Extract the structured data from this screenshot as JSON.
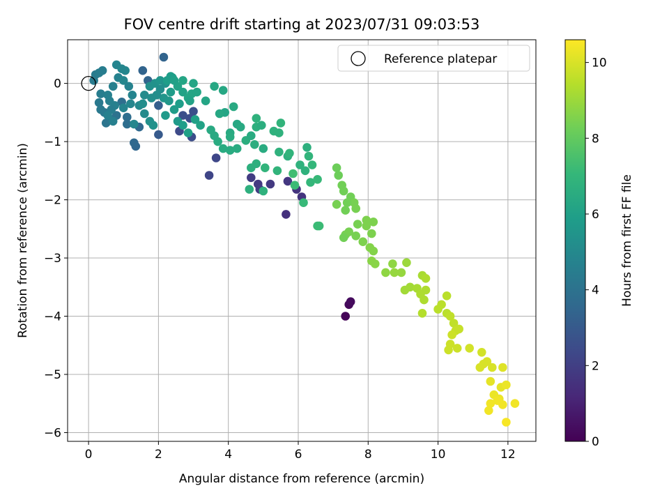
{
  "chart_data": {
    "type": "scatter",
    "title": "FOV centre drift starting at 2023/07/31 09:03:53",
    "xlabel": "Angular distance from reference (arcmin)",
    "ylabel": "Rotation from reference (arcmin)",
    "xlim": [
      -0.6,
      12.8
    ],
    "ylim": [
      -6.15,
      0.75
    ],
    "xticks": [
      0,
      2,
      4,
      6,
      8,
      10,
      12
    ],
    "yticks": [
      0,
      -1,
      -2,
      -3,
      -4,
      -5,
      -6
    ],
    "grid": true,
    "legend": {
      "position": "top-right",
      "entries": [
        "Reference platepar"
      ]
    },
    "reference_point": {
      "x": 0,
      "y": 0,
      "label": "Reference platepar"
    },
    "colorbar": {
      "label": "Hours from first FF file",
      "min": 0,
      "max": 10.6,
      "ticks": [
        0,
        2,
        4,
        6,
        8,
        10
      ],
      "colormap": "viridis",
      "stops": [
        "#440154",
        "#482878",
        "#3e4989",
        "#31688e",
        "#26828e",
        "#1f9e89",
        "#35b779",
        "#6ece58",
        "#b5de2b",
        "#fde725"
      ]
    },
    "points": [
      [
        7.35,
        -4.0,
        0.1
      ],
      [
        7.45,
        -3.8,
        0.2
      ],
      [
        7.5,
        -3.75,
        0.3
      ],
      [
        5.65,
        -2.25,
        1.5
      ],
      [
        6.1,
        -1.95,
        1.6
      ],
      [
        5.95,
        -1.82,
        1.6
      ],
      [
        5.7,
        -1.68,
        1.7
      ],
      [
        5.2,
        -1.73,
        1.8
      ],
      [
        4.85,
        -1.73,
        1.8
      ],
      [
        4.9,
        -1.82,
        1.9
      ],
      [
        4.65,
        -1.62,
        1.9
      ],
      [
        3.45,
        -1.58,
        2.2
      ],
      [
        3.65,
        -1.28,
        2.3
      ],
      [
        2.95,
        -0.92,
        2.5
      ],
      [
        2.6,
        -0.82,
        2.4
      ],
      [
        2.9,
        -0.6,
        2.5
      ],
      [
        3.0,
        -0.48,
        2.6
      ],
      [
        2.7,
        -0.55,
        2.6
      ],
      [
        2.0,
        -0.88,
        3.0
      ],
      [
        2.0,
        -0.38,
        3.2
      ],
      [
        1.7,
        0.05,
        3.4
      ],
      [
        1.55,
        0.22,
        3.4
      ],
      [
        2.15,
        0.45,
        3.4
      ],
      [
        1.35,
        -1.08,
        3.5
      ],
      [
        1.3,
        -1.02,
        3.6
      ],
      [
        1.45,
        -0.75,
        3.6
      ],
      [
        1.1,
        -0.7,
        3.8
      ],
      [
        1.1,
        -0.58,
        3.8
      ],
      [
        0.95,
        -0.32,
        3.8
      ],
      [
        0.8,
        -0.55,
        4.0
      ],
      [
        0.6,
        -0.62,
        4.0
      ],
      [
        0.5,
        -0.68,
        4.1
      ],
      [
        0.45,
        -0.5,
        4.2
      ],
      [
        0.35,
        -0.45,
        4.3
      ],
      [
        0.3,
        -0.33,
        4.3
      ],
      [
        0.15,
        0.05,
        4.4
      ],
      [
        0.2,
        0.15,
        4.4
      ],
      [
        0.3,
        0.18,
        4.5
      ],
      [
        0.4,
        0.22,
        4.5
      ],
      [
        0.35,
        -0.18,
        4.5
      ],
      [
        0.55,
        -0.2,
        4.6
      ],
      [
        0.7,
        -0.05,
        4.6
      ],
      [
        0.85,
        0.1,
        4.7
      ],
      [
        0.8,
        0.32,
        4.8
      ],
      [
        0.95,
        0.25,
        4.9
      ],
      [
        1.05,
        0.22,
        4.9
      ],
      [
        1.0,
        0.05,
        4.9
      ],
      [
        1.15,
        -0.05,
        4.7
      ],
      [
        1.25,
        -0.2,
        4.8
      ],
      [
        1.2,
        -0.35,
        4.9
      ],
      [
        1.0,
        -0.42,
        4.8
      ],
      [
        0.75,
        -0.38,
        4.6
      ],
      [
        0.6,
        -0.3,
        4.6
      ],
      [
        0.65,
        -0.45,
        4.5
      ],
      [
        0.55,
        -0.55,
        4.6
      ],
      [
        0.7,
        -0.65,
        4.6
      ],
      [
        1.3,
        -0.7,
        4.9
      ],
      [
        1.45,
        -0.38,
        5.0
      ],
      [
        1.6,
        -0.2,
        5.1
      ],
      [
        1.8,
        -0.25,
        5.2
      ],
      [
        1.75,
        -0.05,
        5.3
      ],
      [
        1.9,
        0.0,
        5.4
      ],
      [
        2.05,
        0.05,
        5.5
      ],
      [
        2.2,
        0.0,
        5.4
      ],
      [
        2.05,
        -0.1,
        5.2
      ],
      [
        2.15,
        -0.25,
        5.5
      ],
      [
        2.3,
        -0.3,
        5.6
      ],
      [
        2.35,
        -0.15,
        5.8
      ],
      [
        2.25,
        0.05,
        5.9
      ],
      [
        2.4,
        0.1,
        6.0
      ],
      [
        2.55,
        -0.05,
        6.1
      ],
      [
        2.7,
        -0.15,
        6.1
      ],
      [
        2.85,
        -0.25,
        6.2
      ],
      [
        2.95,
        -0.18,
        6.2
      ],
      [
        3.1,
        -0.15,
        6.2
      ],
      [
        3.35,
        -0.3,
        6.2
      ],
      [
        3.6,
        -0.05,
        6.3
      ],
      [
        3.85,
        -0.12,
        6.3
      ],
      [
        3.9,
        -0.5,
        6.2
      ],
      [
        3.75,
        -0.52,
        6.3
      ],
      [
        4.15,
        -0.4,
        6.4
      ],
      [
        4.25,
        -0.7,
        6.3
      ],
      [
        4.35,
        -0.75,
        6.4
      ],
      [
        4.05,
        -0.85,
        6.4
      ],
      [
        4.05,
        -0.92,
        6.5
      ],
      [
        3.85,
        -1.12,
        6.5
      ],
      [
        4.05,
        -1.15,
        6.5
      ],
      [
        4.25,
        -1.12,
        6.5
      ],
      [
        4.5,
        -0.98,
        6.6
      ],
      [
        4.65,
        -0.9,
        6.5
      ],
      [
        4.8,
        -0.75,
        6.7
      ],
      [
        4.8,
        -0.6,
        6.8
      ],
      [
        4.95,
        -0.72,
        6.6
      ],
      [
        4.75,
        -1.05,
        6.6
      ],
      [
        5.0,
        -1.12,
        6.5
      ],
      [
        5.3,
        -0.82,
        6.8
      ],
      [
        5.45,
        -0.85,
        6.8
      ],
      [
        5.5,
        -0.68,
        6.9
      ],
      [
        5.45,
        -1.18,
        6.8
      ],
      [
        5.7,
        -1.25,
        6.7
      ],
      [
        5.75,
        -1.2,
        6.9
      ],
      [
        5.4,
        -1.5,
        6.9
      ],
      [
        5.05,
        -1.45,
        6.9
      ],
      [
        4.65,
        -1.45,
        6.7
      ],
      [
        4.8,
        -1.38,
        6.7
      ],
      [
        5.0,
        -1.85,
        6.8
      ],
      [
        4.6,
        -1.82,
        6.7
      ],
      [
        6.05,
        -1.4,
        6.8
      ],
      [
        6.25,
        -1.1,
        6.7
      ],
      [
        6.2,
        -1.5,
        6.8
      ],
      [
        6.3,
        -1.25,
        6.9
      ],
      [
        6.4,
        -1.4,
        7.0
      ],
      [
        6.35,
        -1.7,
        7.0
      ],
      [
        6.55,
        -1.65,
        7.1
      ],
      [
        6.15,
        -2.05,
        7.1
      ],
      [
        6.55,
        -2.45,
        7.2
      ],
      [
        6.6,
        -2.45,
        7.2
      ],
      [
        5.85,
        -1.55,
        7.3
      ],
      [
        5.9,
        -1.75,
        7.2
      ],
      [
        3.7,
        -1.0,
        6.5
      ],
      [
        3.6,
        -0.9,
        6.4
      ],
      [
        3.5,
        -0.8,
        6.4
      ],
      [
        2.2,
        -0.55,
        5.7
      ],
      [
        2.45,
        -0.45,
        5.8
      ],
      [
        2.6,
        -0.35,
        5.9
      ],
      [
        2.55,
        -0.65,
        5.7
      ],
      [
        2.7,
        -0.72,
        5.9
      ],
      [
        2.85,
        -0.85,
        6.0
      ],
      [
        3.2,
        -0.72,
        6.1
      ],
      [
        3.05,
        -0.62,
        6.0
      ],
      [
        1.95,
        -0.2,
        5.2
      ],
      [
        1.6,
        -0.52,
        5.1
      ],
      [
        1.75,
        -0.65,
        5.3
      ],
      [
        1.85,
        -0.72,
        5.4
      ],
      [
        1.55,
        -0.35,
        5.2
      ],
      [
        2.35,
        0.12,
        5.9
      ],
      [
        2.45,
        0.05,
        6.0
      ],
      [
        2.7,
        0.05,
        6.2
      ],
      [
        3.0,
        0.0,
        6.2
      ],
      [
        2.9,
        -0.3,
        6.1
      ],
      [
        7.1,
        -1.45,
        8.2
      ],
      [
        7.15,
        -1.58,
        8.2
      ],
      [
        7.25,
        -1.75,
        8.3
      ],
      [
        7.3,
        -1.85,
        8.3
      ],
      [
        7.5,
        -1.95,
        8.3
      ],
      [
        7.6,
        -2.05,
        8.4
      ],
      [
        7.4,
        -2.05,
        8.3
      ],
      [
        7.1,
        -2.08,
        8.4
      ],
      [
        7.35,
        -2.18,
        8.3
      ],
      [
        7.65,
        -2.15,
        8.4
      ],
      [
        7.45,
        -2.55,
        8.4
      ],
      [
        7.35,
        -2.6,
        8.4
      ],
      [
        7.3,
        -2.65,
        8.3
      ],
      [
        7.7,
        -2.42,
        8.4
      ],
      [
        7.95,
        -2.35,
        8.5
      ],
      [
        8.15,
        -2.38,
        8.5
      ],
      [
        8.1,
        -2.58,
        8.5
      ],
      [
        7.95,
        -2.45,
        8.5
      ],
      [
        7.85,
        -2.72,
        8.5
      ],
      [
        7.65,
        -2.62,
        8.4
      ],
      [
        8.05,
        -2.82,
        8.6
      ],
      [
        8.15,
        -2.88,
        8.6
      ],
      [
        8.1,
        -3.05,
        8.7
      ],
      [
        8.2,
        -3.1,
        8.7
      ],
      [
        8.5,
        -3.25,
        8.8
      ],
      [
        8.7,
        -3.1,
        8.8
      ],
      [
        8.75,
        -3.25,
        8.9
      ],
      [
        8.95,
        -3.25,
        8.9
      ],
      [
        9.1,
        -3.08,
        9.0
      ],
      [
        9.05,
        -3.55,
        9.1
      ],
      [
        9.2,
        -3.5,
        9.1
      ],
      [
        9.4,
        -3.52,
        9.2
      ],
      [
        9.55,
        -3.3,
        9.2
      ],
      [
        9.65,
        -3.35,
        9.3
      ],
      [
        9.5,
        -3.62,
        9.3
      ],
      [
        9.65,
        -3.55,
        9.3
      ],
      [
        9.6,
        -3.72,
        9.3
      ],
      [
        9.55,
        -3.95,
        9.4
      ],
      [
        10.0,
        -3.88,
        9.5
      ],
      [
        10.1,
        -3.8,
        9.5
      ],
      [
        10.25,
        -3.65,
        9.5
      ],
      [
        10.25,
        -3.95,
        9.5
      ],
      [
        10.35,
        -4.0,
        9.6
      ],
      [
        10.45,
        -4.12,
        9.6
      ],
      [
        10.5,
        -4.25,
        9.7
      ],
      [
        10.6,
        -4.22,
        9.7
      ],
      [
        10.4,
        -4.32,
        9.8
      ],
      [
        10.35,
        -4.48,
        9.8
      ],
      [
        10.3,
        -4.58,
        9.8
      ],
      [
        10.55,
        -4.55,
        9.8
      ],
      [
        10.9,
        -4.55,
        9.9
      ],
      [
        11.25,
        -4.62,
        9.9
      ],
      [
        11.4,
        -4.78,
        10.0
      ],
      [
        11.2,
        -4.88,
        10.0
      ],
      [
        11.3,
        -4.82,
        10.0
      ],
      [
        11.55,
        -4.88,
        10.0
      ],
      [
        11.85,
        -4.88,
        10.1
      ],
      [
        11.5,
        -5.12,
        10.2
      ],
      [
        11.8,
        -5.22,
        10.2
      ],
      [
        11.95,
        -5.18,
        10.3
      ],
      [
        11.6,
        -5.35,
        10.3
      ],
      [
        11.75,
        -5.42,
        10.3
      ],
      [
        11.5,
        -5.5,
        10.4
      ],
      [
        11.85,
        -5.52,
        10.4
      ],
      [
        12.2,
        -5.5,
        10.4
      ],
      [
        11.45,
        -5.62,
        10.4
      ],
      [
        11.95,
        -5.82,
        10.5
      ],
      [
        11.7,
        -5.45,
        10.4
      ]
    ]
  }
}
